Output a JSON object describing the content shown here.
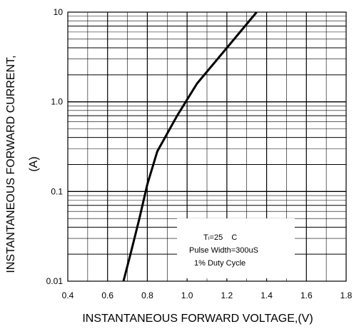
{
  "chart_data": {
    "type": "line",
    "xlabel": "INSTANTANEOUS FORWARD VOLTAGE,(V)",
    "ylabel": "INSTANTANEOUS FORWARD CURRENT,",
    "ylabel_unit": "(A)",
    "xlim": [
      0.4,
      1.8
    ],
    "ylim": [
      0.01,
      10
    ],
    "y_scale": "log",
    "grid": true,
    "x_ticks": [
      "0.4",
      "0.6",
      "0.8",
      "1.0",
      "1.2",
      "1.4",
      "1.6",
      "1.8"
    ],
    "x_tick_values": [
      0.4,
      0.6,
      0.8,
      1.0,
      1.2,
      1.4,
      1.6,
      1.8
    ],
    "y_ticks": [
      "0.01",
      "0.1",
      "1.0",
      "10"
    ],
    "y_tick_values": [
      0.01,
      0.1,
      1,
      10
    ],
    "series": [
      {
        "x": [
          0.68,
          0.72,
          0.76,
          0.8,
          0.85,
          0.95,
          1.05,
          1.2,
          1.35
        ],
        "y": [
          0.01,
          0.022,
          0.05,
          0.12,
          0.28,
          0.7,
          1.6,
          4,
          10
        ]
      }
    ],
    "annotation": {
      "line1": "Tₗ=25    C",
      "line2": "Pulse Width=300uS",
      "line3": "1% Duty Cycle"
    },
    "colors": {
      "line": "#000000",
      "grid": "#000000",
      "background": "#ffffff"
    }
  }
}
